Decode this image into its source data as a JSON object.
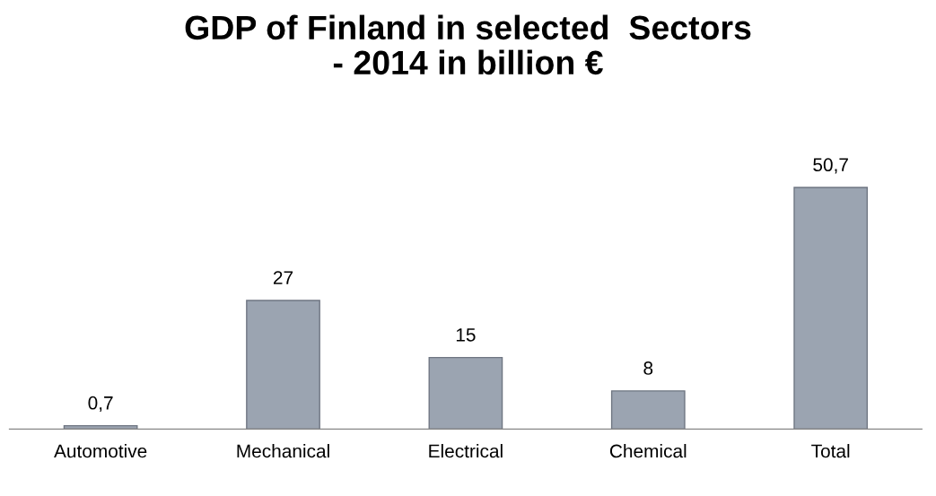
{
  "chart_data": {
    "type": "bar",
    "title": "GDP of Finland in selected  Sectors\n- 2014 in billion €",
    "categories": [
      "Automotive",
      "Mechanical",
      "Electrical",
      "Chemical",
      "Total"
    ],
    "values": [
      0.7,
      27,
      15,
      8,
      50.7
    ],
    "value_labels": [
      "0,7",
      "27",
      "15",
      "8",
      "50,7"
    ],
    "color": "#9ba4b1",
    "grid": false,
    "tick_labels": "x"
  }
}
